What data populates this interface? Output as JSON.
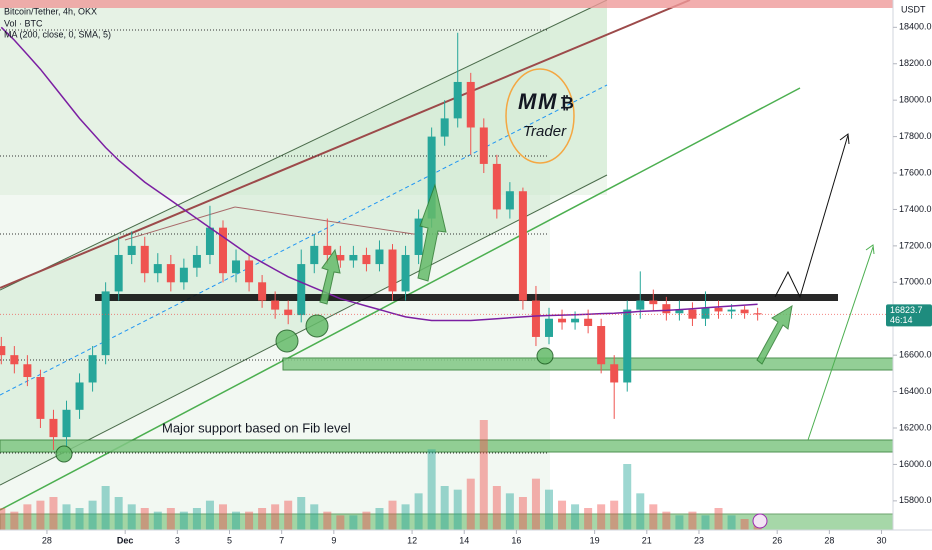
{
  "chart_data": {
    "type": "candlestick",
    "title": "Bitcoin/Tether, 4h, OKX",
    "volume_label": "Vol · BTC",
    "y_unit": "USDT",
    "annotation": "Major support based on Fib level",
    "up_color": "#26a69a",
    "down_color": "#ef5350",
    "grid": false,
    "xlim": [
      -1.8,
      32.44
    ],
    "ylim": [
      15640,
      18550
    ],
    "xticks": [
      {
        "value": 0,
        "label": "28"
      },
      {
        "value": 3,
        "label": "Dec"
      },
      {
        "value": 5,
        "label": "3"
      },
      {
        "value": 7,
        "label": "5"
      },
      {
        "value": 9,
        "label": "7"
      },
      {
        "value": 11,
        "label": "9"
      },
      {
        "value": 14,
        "label": "12"
      },
      {
        "value": 16,
        "label": "14"
      },
      {
        "value": 18,
        "label": "16"
      },
      {
        "value": 21,
        "label": "19"
      },
      {
        "value": 23,
        "label": "21"
      },
      {
        "value": 25,
        "label": "23"
      },
      {
        "value": 28,
        "label": "26"
      },
      {
        "value": 30,
        "label": "28"
      },
      {
        "value": 32,
        "label": "30"
      }
    ],
    "yticks": [
      {
        "value": 15800,
        "label": "15800.0"
      },
      {
        "value": 16000,
        "label": "16000.0"
      },
      {
        "value": 16200,
        "label": "16200.0"
      },
      {
        "value": 16400,
        "label": "16400.0"
      },
      {
        "value": 16600,
        "label": "16600.0"
      },
      {
        "value": 16800,
        "label": "16800.0"
      },
      {
        "value": 17000,
        "label": "17000.0"
      },
      {
        "value": 17200,
        "label": "17200.0"
      },
      {
        "value": 17400,
        "label": "17400.0"
      },
      {
        "value": 17600,
        "label": "17600.0"
      },
      {
        "value": 17800,
        "label": "17800.0"
      },
      {
        "value": 18000,
        "label": "18000.0"
      },
      {
        "value": 18200,
        "label": "18200.0"
      },
      {
        "value": 18400,
        "label": "18400.0"
      }
    ],
    "x": [
      -1.75,
      -1.25,
      -0.75,
      -0.25,
      0.25,
      0.75,
      1.25,
      1.75,
      2.25,
      2.75,
      3.25,
      3.75,
      4.25,
      4.75,
      5.25,
      5.75,
      6.25,
      6.75,
      7.25,
      7.75,
      8.25,
      8.75,
      9.25,
      9.75,
      10.25,
      10.75,
      11.25,
      11.75,
      12.25,
      12.75,
      13.25,
      13.75,
      14.25,
      14.75,
      15.25,
      15.75,
      16.25,
      16.75,
      17.25,
      17.75,
      18.25,
      18.75,
      19.25,
      19.75,
      20.25,
      20.75,
      21.25,
      21.75,
      22.25,
      22.75,
      23.25,
      23.75,
      24.25,
      24.75,
      25.25,
      25.75,
      26.25,
      26.75,
      27.25
    ],
    "open": [
      16650,
      16600,
      16550,
      16480,
      16250,
      16150,
      16300,
      16450,
      16600,
      16950,
      17150,
      17200,
      17050,
      17100,
      17000,
      17080,
      17150,
      17300,
      17050,
      17120,
      17000,
      16900,
      16850,
      16820,
      17100,
      17200,
      17150,
      17120,
      17150,
      17100,
      17180,
      16950,
      17150,
      17350,
      17800,
      17900,
      18100,
      17850,
      17650,
      17400,
      17500,
      16900,
      16700,
      16800,
      16780,
      16800,
      16760,
      16550,
      16450,
      16850,
      16900,
      16880,
      16830,
      16850,
      16800,
      16860,
      16840,
      16850,
      16830
    ],
    "high": [
      16700,
      16650,
      16600,
      16520,
      16300,
      16350,
      16500,
      16650,
      17000,
      17250,
      17280,
      17250,
      17160,
      17150,
      17130,
      17200,
      17420,
      17340,
      17180,
      17150,
      17040,
      16950,
      16900,
      17180,
      17260,
      17350,
      17200,
      17200,
      17190,
      17230,
      17210,
      17200,
      17400,
      17850,
      18000,
      18370,
      18150,
      17900,
      17700,
      17550,
      17520,
      16980,
      16860,
      16850,
      16840,
      16850,
      16800,
      16600,
      16900,
      17060,
      16960,
      16920,
      16900,
      16890,
      16950,
      16900,
      16880,
      16870,
      16860
    ],
    "low": [
      16550,
      16500,
      16430,
      16200,
      16080,
      16100,
      16250,
      16400,
      16550,
      16900,
      17100,
      17000,
      17000,
      16950,
      16960,
      17030,
      17100,
      17000,
      17000,
      16950,
      16860,
      16800,
      16770,
      16780,
      17050,
      17100,
      17080,
      17080,
      17060,
      17060,
      16900,
      16900,
      17100,
      17300,
      17750,
      17850,
      17700,
      17600,
      17350,
      17350,
      16850,
      16650,
      16660,
      16740,
      16740,
      16720,
      16500,
      16250,
      16400,
      16800,
      16840,
      16790,
      16790,
      16760,
      16760,
      16800,
      16800,
      16800,
      16790
    ],
    "close": [
      16600,
      16550,
      16480,
      16250,
      16150,
      16300,
      16450,
      16600,
      16950,
      17150,
      17200,
      17050,
      17100,
      17000,
      17080,
      17150,
      17300,
      17050,
      17120,
      17000,
      16900,
      16850,
      16820,
      17100,
      17200,
      17150,
      17120,
      17150,
      17100,
      17180,
      16950,
      17150,
      17350,
      17800,
      17900,
      18100,
      17850,
      17650,
      17400,
      17500,
      16900,
      16700,
      16800,
      16780,
      16800,
      16760,
      16550,
      16450,
      16850,
      16900,
      16880,
      16830,
      16850,
      16800,
      16860,
      16840,
      16850,
      16830,
      16824
    ],
    "volume": [
      30,
      25,
      35,
      40,
      45,
      35,
      30,
      40,
      60,
      45,
      35,
      30,
      25,
      30,
      25,
      30,
      40,
      35,
      25,
      25,
      30,
      35,
      40,
      45,
      35,
      25,
      20,
      20,
      25,
      30,
      40,
      35,
      50,
      110,
      60,
      55,
      70,
      150,
      60,
      50,
      45,
      70,
      55,
      40,
      35,
      30,
      35,
      40,
      90,
      50,
      35,
      25,
      20,
      25,
      20,
      30,
      20,
      15,
      10
    ],
    "ma": {
      "name": "MA (200, close, 0, SMA, 5)",
      "color": "#7b1fa2",
      "values": [
        18400,
        18330,
        18250,
        18170,
        18080,
        17990,
        17900,
        17820,
        17740,
        17670,
        17610,
        17550,
        17500,
        17450,
        17400,
        17350,
        17300,
        17250,
        17200,
        17150,
        17110,
        17070,
        17030,
        17000,
        16970,
        16940,
        16910,
        16890,
        16870,
        16850,
        16830,
        16810,
        16800,
        16790,
        16790,
        16790,
        16790,
        16795,
        16800,
        16805,
        16810,
        16815,
        16818,
        16820,
        16822,
        16825,
        16828,
        16830,
        16835,
        16840,
        16843,
        16846,
        16850,
        16855,
        16860,
        16865,
        16870,
        16875,
        16880
      ]
    },
    "last_price": 16823.7,
    "countdown": "46:14"
  },
  "logo": {
    "letters": [
      "M",
      "M"
    ],
    "symbol": "₿",
    "text": "Trader"
  }
}
